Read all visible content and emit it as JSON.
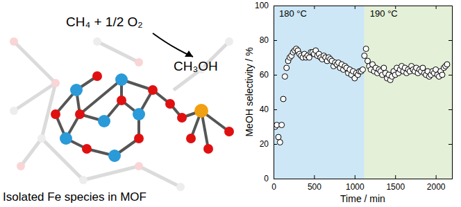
{
  "chart_data": {
    "type": "scatter",
    "x_label": "Time / min",
    "y_label": "MeOH selectivity / %",
    "xlim": [
      0,
      2200
    ],
    "xticks": [
      0,
      500,
      1000,
      1500,
      2000
    ],
    "ylim": [
      0,
      100
    ],
    "yticks": [
      0,
      20,
      40,
      60,
      80,
      100
    ],
    "marker": "open-circle",
    "color": "#000000",
    "regions": [
      {
        "label": "180 °C",
        "start": 0,
        "end": 1120,
        "color": "#cde7f6"
      },
      {
        "label": "190 °C",
        "start": 1120,
        "end": 2200,
        "color": "#e4f0d8"
      }
    ],
    "x": [
      0,
      20,
      40,
      60,
      80,
      100,
      120,
      140,
      160,
      180,
      200,
      220,
      240,
      260,
      280,
      300,
      320,
      340,
      360,
      380,
      400,
      420,
      440,
      460,
      480,
      500,
      520,
      540,
      560,
      580,
      600,
      620,
      640,
      660,
      680,
      700,
      720,
      740,
      760,
      780,
      800,
      820,
      840,
      860,
      880,
      900,
      920,
      940,
      960,
      980,
      1000,
      1020,
      1040,
      1060,
      1080,
      1100,
      1120,
      1140,
      1160,
      1180,
      1200,
      1220,
      1240,
      1260,
      1280,
      1300,
      1320,
      1340,
      1360,
      1380,
      1400,
      1420,
      1440,
      1460,
      1480,
      1500,
      1520,
      1540,
      1560,
      1580,
      1600,
      1620,
      1640,
      1660,
      1680,
      1700,
      1720,
      1740,
      1760,
      1780,
      1800,
      1820,
      1840,
      1860,
      1880,
      1900,
      1920,
      1940,
      1960,
      1980,
      2000,
      2020,
      2040,
      2060,
      2080,
      2100,
      2120,
      2140
    ],
    "values": [
      30,
      30,
      31,
      24,
      21,
      31,
      46,
      59,
      64,
      68,
      70,
      71,
      73,
      74,
      75,
      74,
      72,
      71,
      70,
      72,
      70,
      71,
      70,
      73,
      73,
      72,
      74,
      71,
      72,
      70,
      69,
      71,
      70,
      68,
      70,
      69,
      68,
      65,
      67,
      66,
      67,
      64,
      66,
      63,
      65,
      64,
      61,
      63,
      60,
      62,
      58,
      61,
      60,
      62,
      62,
      63,
      71,
      75,
      68,
      65,
      63,
      66,
      62,
      64,
      61,
      63,
      62,
      60,
      64,
      61,
      58,
      60,
      57,
      59,
      62,
      60,
      64,
      61,
      63,
      65,
      62,
      64,
      61,
      63,
      62,
      65,
      63,
      62,
      64,
      61,
      63,
      62,
      64,
      61,
      60,
      62,
      59,
      60,
      62,
      61,
      63,
      60,
      59,
      62,
      60,
      64,
      65,
      66
    ]
  },
  "scheme": {
    "reactant": "CH₄ + 1/2 O₂",
    "product": "CH₃OH",
    "caption": "Isolated Fe species in MOF"
  }
}
